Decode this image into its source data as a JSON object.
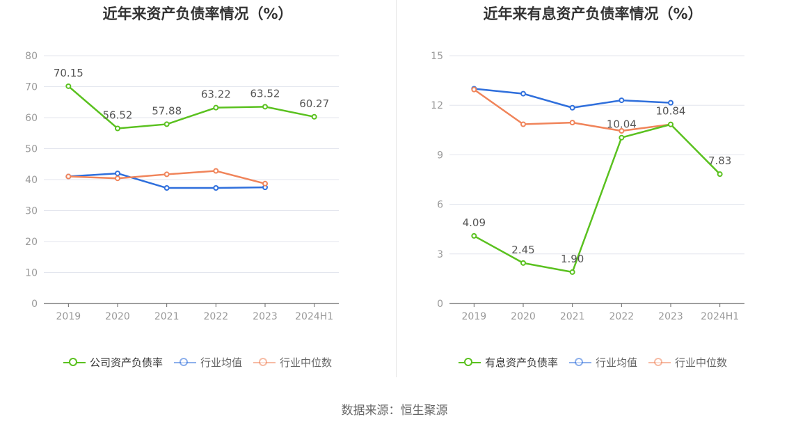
{
  "source": "数据来源：恒生聚源",
  "charts": [
    {
      "title": "近年来资产负债率情况（%）",
      "chart_data": {
        "type": "line",
        "title": "近年来资产负债率情况（%）",
        "categories": [
          "2019",
          "2020",
          "2021",
          "2022",
          "2023",
          "2024H1"
        ],
        "ylim": [
          0,
          80
        ],
        "yticks": [
          0,
          10,
          20,
          30,
          40,
          50,
          60,
          70,
          80
        ],
        "grid": true,
        "legend_position": "bottom",
        "series": [
          {
            "name": "公司资产负债率",
            "color": "#5ac11f",
            "values": [
              70.15,
              56.52,
              57.88,
              63.22,
              63.52,
              60.27
            ],
            "labels": [
              "70.15",
              "56.52",
              "57.88",
              "63.22",
              "63.52",
              "60.27"
            ]
          },
          {
            "name": "行业均值",
            "color": "#2f6fdc",
            "values": [
              41.0,
              42.0,
              37.3,
              37.3,
              37.5,
              null
            ],
            "labels": []
          },
          {
            "name": "行业中位数",
            "color": "#f0845a",
            "values": [
              41.0,
              40.4,
              41.7,
              42.8,
              38.7,
              null
            ],
            "labels": []
          }
        ]
      }
    },
    {
      "title": "近年来有息资产负债率情况（%）",
      "chart_data": {
        "type": "line",
        "title": "近年来有息资产负债率情况（%）",
        "categories": [
          "2019",
          "2020",
          "2021",
          "2022",
          "2023",
          "2024H1"
        ],
        "ylim": [
          0,
          15
        ],
        "yticks": [
          0,
          3,
          6,
          9,
          12,
          15
        ],
        "grid": true,
        "legend_position": "bottom",
        "series": [
          {
            "name": "有息资产负债率",
            "color": "#5ac11f",
            "values": [
              4.09,
              2.45,
              1.9,
              10.04,
              10.84,
              7.83
            ],
            "labels": [
              "4.09",
              "2.45",
              "1.90",
              "10.04",
              "10.84",
              "7.83"
            ]
          },
          {
            "name": "行业均值",
            "color": "#2f6fdc",
            "values": [
              13.0,
              12.7,
              11.85,
              12.3,
              12.15,
              null
            ],
            "labels": []
          },
          {
            "name": "行业中位数",
            "color": "#f0845a",
            "values": [
              12.95,
              10.85,
              10.95,
              10.45,
              10.84,
              null
            ],
            "labels": []
          }
        ]
      }
    }
  ]
}
